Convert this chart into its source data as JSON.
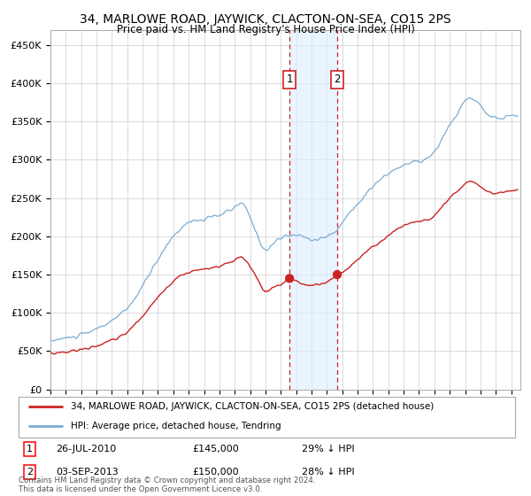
{
  "title": "34, MARLOWE ROAD, JAYWICK, CLACTON-ON-SEA, CO15 2PS",
  "subtitle": "Price paid vs. HM Land Registry's House Price Index (HPI)",
  "sale1_date": "26-JUL-2010",
  "sale1_price": 145000,
  "sale1_label": "1",
  "sale1_pct": "29% ↓ HPI",
  "sale2_date": "03-SEP-2013",
  "sale2_price": 150000,
  "sale2_label": "2",
  "sale2_pct": "28% ↓ HPI",
  "legend1": "34, MARLOWE ROAD, JAYWICK, CLACTON-ON-SEA, CO15 2PS (detached house)",
  "legend2": "HPI: Average price, detached house, Tendring",
  "footer": "Contains HM Land Registry data © Crown copyright and database right 2024.\nThis data is licensed under the Open Government Licence v3.0.",
  "hpi_color": "#7aadd4",
  "price_color": "#cc2222",
  "marker_color": "#cc2222",
  "vline_color": "#cc2222",
  "shade_color": "#ddeeff",
  "ylim": [
    0,
    470000
  ],
  "yticks": [
    0,
    50000,
    100000,
    150000,
    200000,
    250000,
    300000,
    350000,
    400000,
    450000
  ],
  "background_color": "#ffffff",
  "grid_color": "#cccccc"
}
